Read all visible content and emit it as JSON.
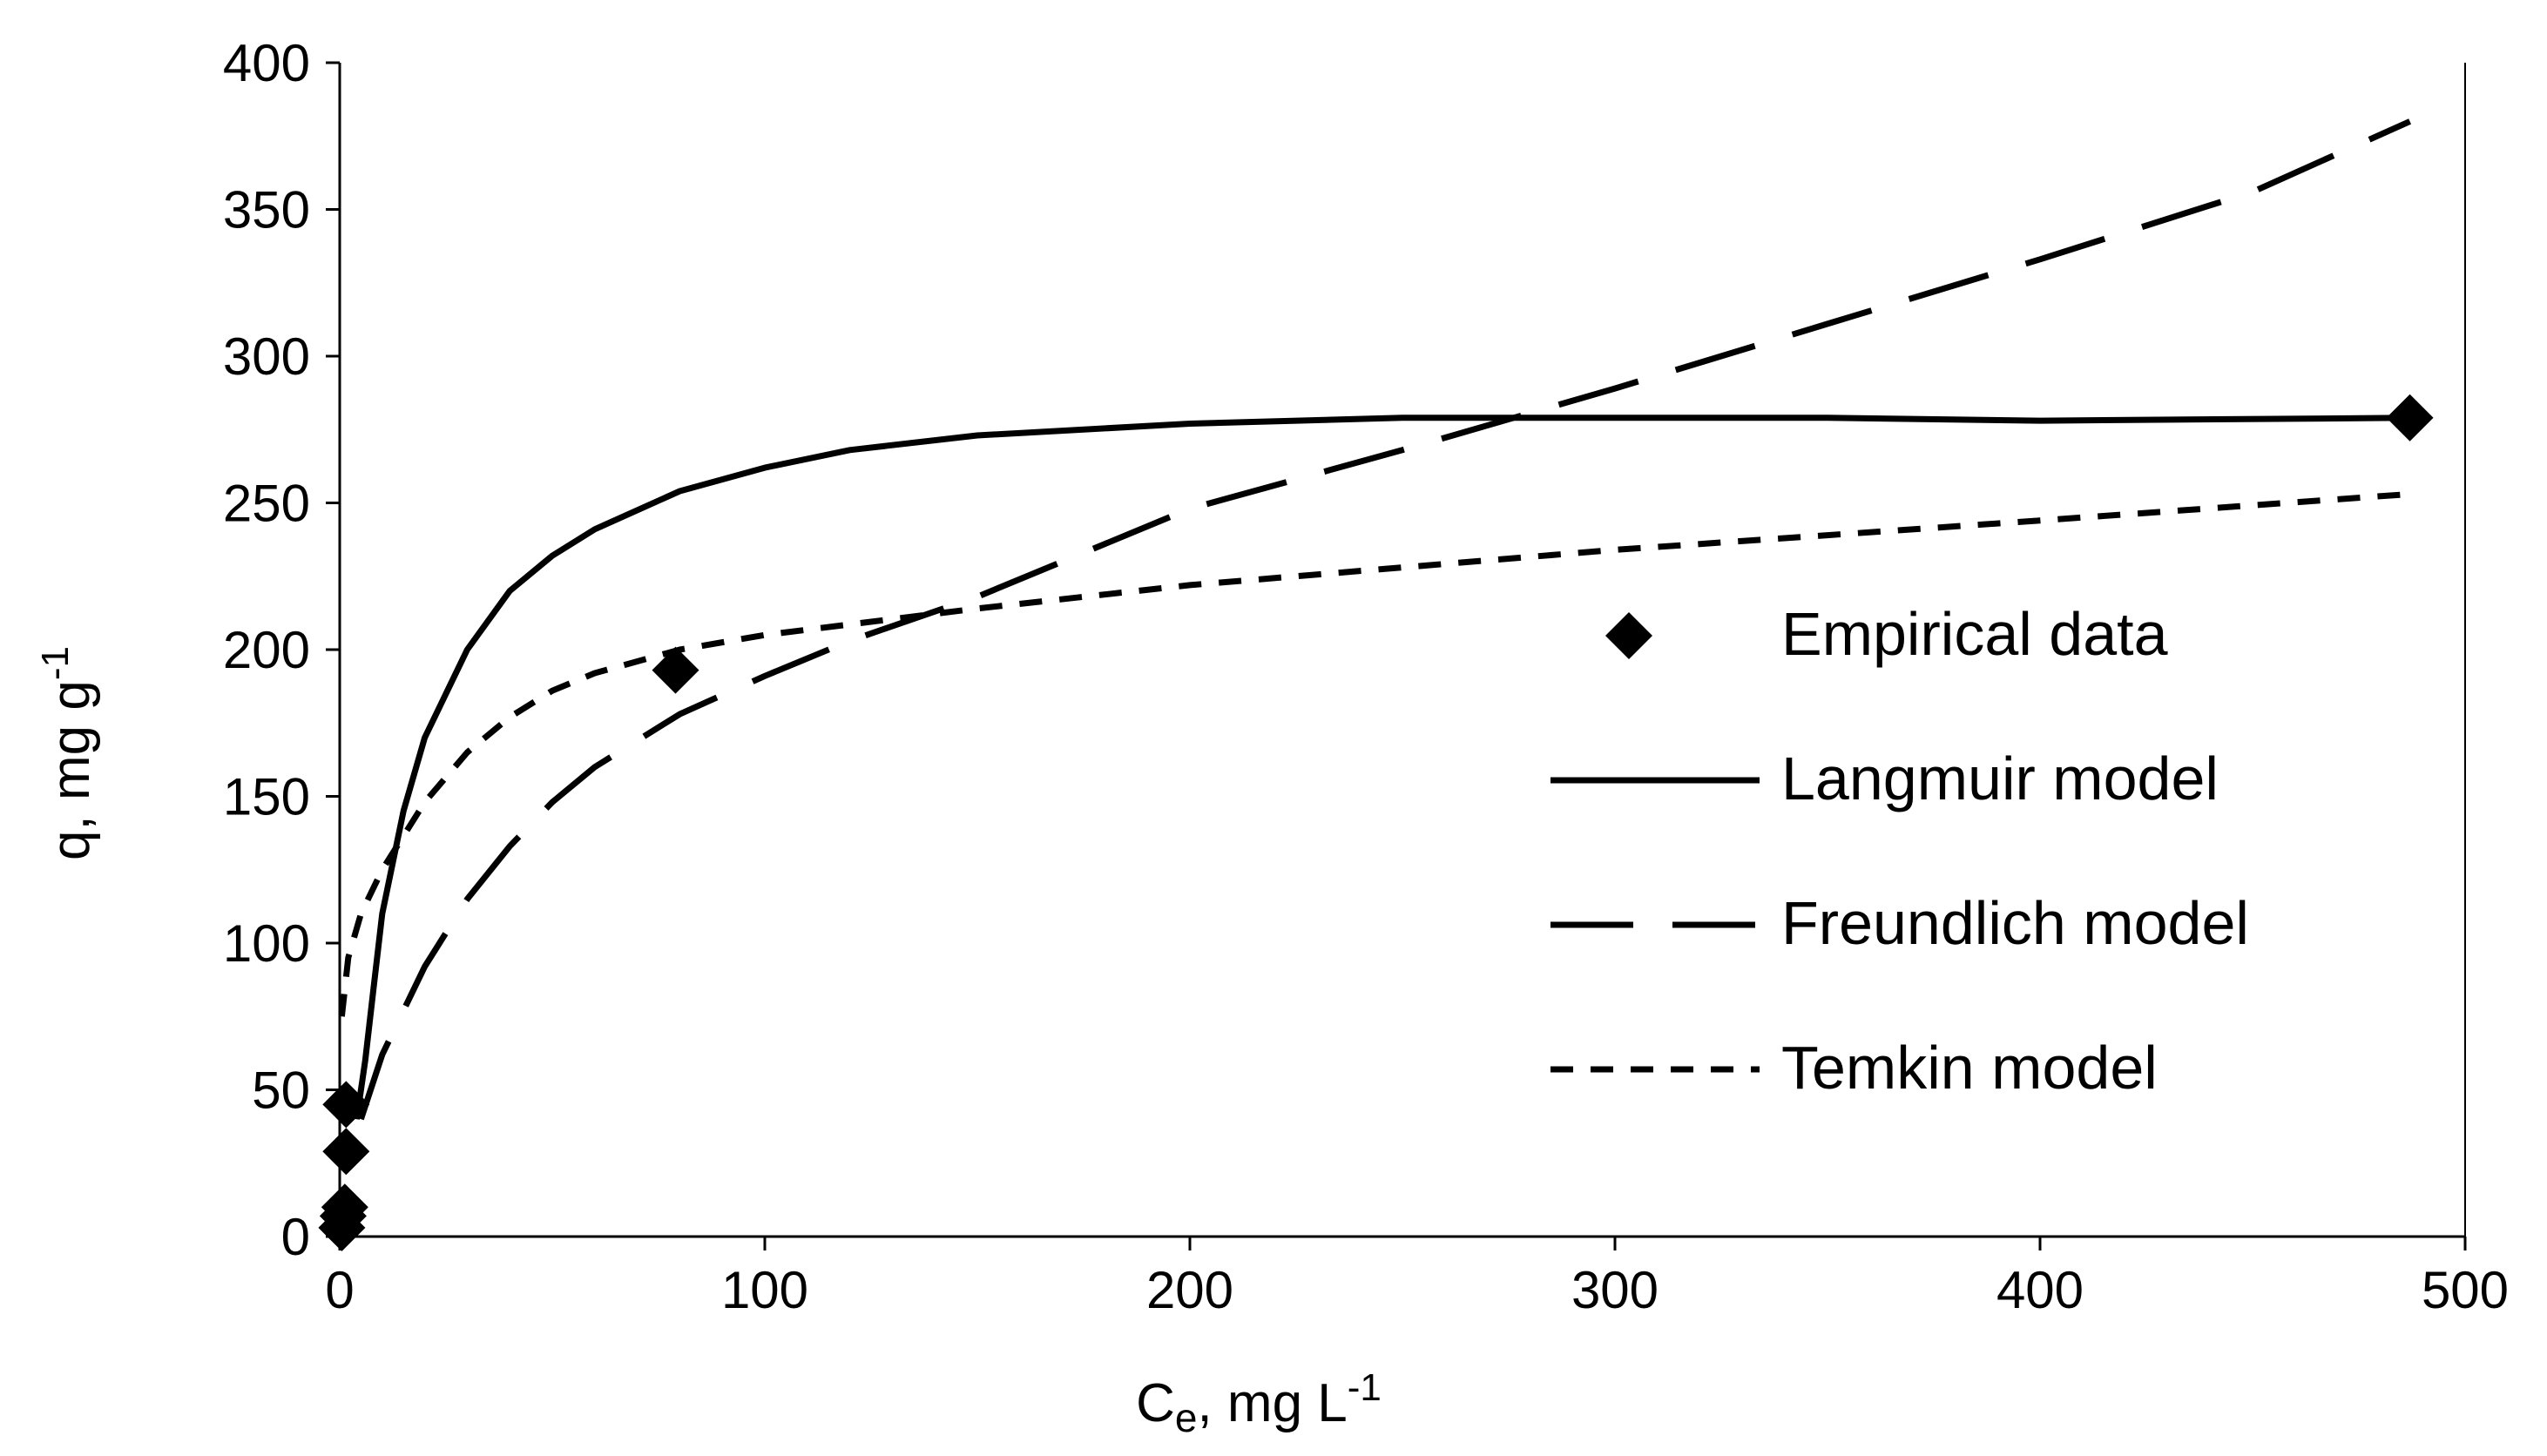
{
  "chart_data": {
    "type": "scatter",
    "title": "",
    "xlabel": {
      "main": "C",
      "sub": "e",
      "rest": ", mg L",
      "sup": "-1"
    },
    "ylabel": {
      "main": "q, mg g",
      "sup": "-1"
    },
    "xlim": [
      0,
      500
    ],
    "ylim": [
      0,
      400
    ],
    "xticks": [
      0,
      100,
      200,
      300,
      400,
      500
    ],
    "yticks": [
      0,
      50,
      100,
      150,
      200,
      250,
      300,
      350,
      400
    ],
    "grid": false,
    "legend_position": "right",
    "series": [
      {
        "name": "Empirical data",
        "kind": "points",
        "marker": "diamond",
        "color": "#000000",
        "points": [
          [
            0.5,
            3
          ],
          [
            0.8,
            7
          ],
          [
            1.2,
            10
          ],
          [
            1.5,
            29
          ],
          [
            1.5,
            45
          ],
          [
            79,
            193
          ],
          [
            487,
            279
          ]
        ]
      },
      {
        "name": "Langmuir model",
        "kind": "line",
        "dash": "solid",
        "color": "#000000",
        "points": [
          [
            4,
            40
          ],
          [
            6,
            60
          ],
          [
            8,
            85
          ],
          [
            10,
            110
          ],
          [
            15,
            145
          ],
          [
            20,
            170
          ],
          [
            30,
            200
          ],
          [
            40,
            220
          ],
          [
            50,
            232
          ],
          [
            60,
            241
          ],
          [
            80,
            254
          ],
          [
            100,
            262
          ],
          [
            120,
            268
          ],
          [
            150,
            273
          ],
          [
            200,
            277
          ],
          [
            250,
            279
          ],
          [
            300,
            279
          ],
          [
            350,
            279
          ],
          [
            400,
            278
          ],
          [
            487,
            279
          ]
        ]
      },
      {
        "name": "Freundlich model",
        "kind": "line",
        "dash": "long",
        "color": "#000000",
        "points": [
          [
            5,
            40
          ],
          [
            10,
            62
          ],
          [
            20,
            92
          ],
          [
            30,
            115
          ],
          [
            40,
            133
          ],
          [
            50,
            148
          ],
          [
            60,
            160
          ],
          [
            80,
            178
          ],
          [
            100,
            191
          ],
          [
            120,
            203
          ],
          [
            150,
            218
          ],
          [
            200,
            248
          ],
          [
            250,
            268
          ],
          [
            300,
            289
          ],
          [
            350,
            311
          ],
          [
            400,
            333
          ],
          [
            450,
            356
          ],
          [
            487,
            380
          ]
        ]
      },
      {
        "name": "Temkin model",
        "kind": "line",
        "dash": "short",
        "color": "#000000",
        "points": [
          [
            0.5,
            75
          ],
          [
            2,
            95
          ],
          [
            5,
            110
          ],
          [
            10,
            125
          ],
          [
            20,
            148
          ],
          [
            30,
            165
          ],
          [
            40,
            177
          ],
          [
            50,
            186
          ],
          [
            60,
            192
          ],
          [
            80,
            200
          ],
          [
            100,
            205
          ],
          [
            150,
            214
          ],
          [
            200,
            222
          ],
          [
            250,
            228
          ],
          [
            300,
            234
          ],
          [
            350,
            239
          ],
          [
            400,
            244
          ],
          [
            487,
            253
          ]
        ]
      }
    ]
  }
}
